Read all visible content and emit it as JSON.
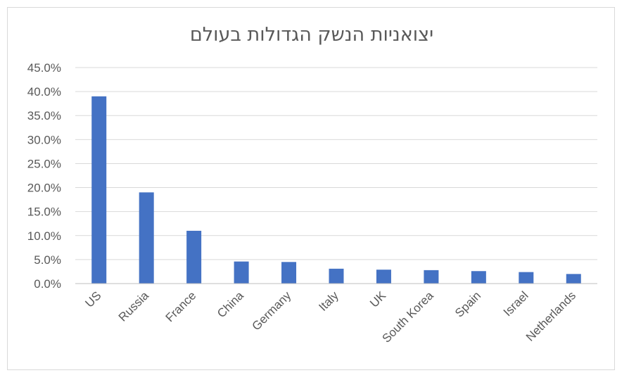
{
  "chart_data": {
    "type": "bar",
    "title": "יצואניות הנשק הגדולות בעולם",
    "categories": [
      "US",
      "Russia",
      "France",
      "China",
      "Germany",
      "Italy",
      "UK",
      "South Korea",
      "Spain",
      "Israel",
      "Netherlands"
    ],
    "values": [
      39.0,
      19.0,
      11.0,
      4.6,
      4.5,
      3.1,
      2.9,
      2.8,
      2.6,
      2.4,
      2.0
    ],
    "ylim": [
      0,
      45
    ],
    "yticks": [
      "0.0%",
      "5.0%",
      "10.0%",
      "15.0%",
      "20.0%",
      "25.0%",
      "30.0%",
      "35.0%",
      "40.0%",
      "45.0%"
    ],
    "xlabel": "",
    "ylabel": "",
    "grid": true,
    "legend": "none",
    "bar_color": "#4472c4"
  }
}
